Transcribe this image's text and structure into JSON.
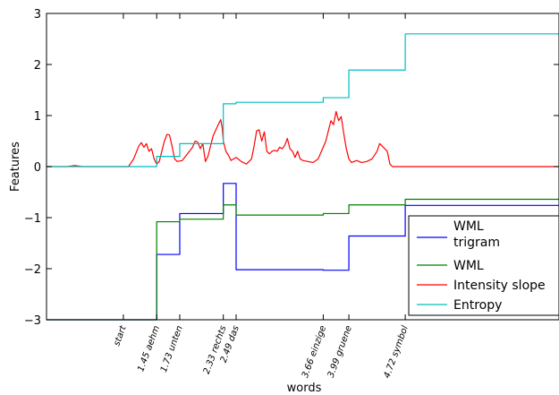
{
  "chart_data": {
    "type": "line",
    "xlabel": "words",
    "ylabel": "Features",
    "ylim": [
      -3,
      3
    ],
    "yticks": [
      "3",
      "2",
      "1",
      "0",
      "−1",
      "−2",
      "−3"
    ],
    "xlim": [
      0,
      10
    ],
    "word_ticks": [
      {
        "x": 1.5,
        "label": "start"
      },
      {
        "x": 2.15,
        "label": "1.45 aehm"
      },
      {
        "x": 2.6,
        "label": "1.73 unten"
      },
      {
        "x": 3.45,
        "label": "2.33 rechts"
      },
      {
        "x": 3.7,
        "label": "2.49 das"
      },
      {
        "x": 5.4,
        "label": "3.66 einzige"
      },
      {
        "x": 5.9,
        "label": "3.99 gruene"
      },
      {
        "x": 7.0,
        "label": "4.72 symbol"
      }
    ],
    "legend_position": "lower-right",
    "series": [
      {
        "name": "WML trigram",
        "color": "#0000ff",
        "step": true,
        "points": [
          [
            0,
            -3.0
          ],
          [
            2.15,
            -3.0
          ],
          [
            2.15,
            -1.72
          ],
          [
            2.6,
            -1.72
          ],
          [
            2.6,
            -0.92
          ],
          [
            3.45,
            -0.92
          ],
          [
            3.45,
            -0.33
          ],
          [
            3.7,
            -0.33
          ],
          [
            3.7,
            -2.02
          ],
          [
            5.4,
            -2.02
          ],
          [
            5.4,
            -2.03
          ],
          [
            5.9,
            -2.03
          ],
          [
            5.9,
            -1.36
          ],
          [
            7.0,
            -1.36
          ],
          [
            7.0,
            -0.76
          ],
          [
            10,
            -0.76
          ]
        ]
      },
      {
        "name": "WML",
        "color": "#008000",
        "step": true,
        "points": [
          [
            0,
            -3.0
          ],
          [
            2.15,
            -3.0
          ],
          [
            2.15,
            -1.08
          ],
          [
            2.6,
            -1.08
          ],
          [
            2.6,
            -1.03
          ],
          [
            3.45,
            -1.03
          ],
          [
            3.45,
            -0.75
          ],
          [
            3.7,
            -0.75
          ],
          [
            3.7,
            -0.95
          ],
          [
            5.4,
            -0.95
          ],
          [
            5.4,
            -0.92
          ],
          [
            5.9,
            -0.92
          ],
          [
            5.9,
            -0.75
          ],
          [
            7.0,
            -0.75
          ],
          [
            7.0,
            -0.64
          ],
          [
            10,
            -0.64
          ]
        ]
      },
      {
        "name": "Intensity slope",
        "color": "#ff0000",
        "step": false,
        "points": [
          [
            0,
            0.0
          ],
          [
            0.4,
            0.0
          ],
          [
            0.55,
            0.02
          ],
          [
            0.7,
            0.0
          ],
          [
            1.6,
            0.0
          ],
          [
            1.7,
            0.15
          ],
          [
            1.8,
            0.4
          ],
          [
            1.85,
            0.47
          ],
          [
            1.9,
            0.38
          ],
          [
            1.95,
            0.45
          ],
          [
            2.0,
            0.3
          ],
          [
            2.05,
            0.35
          ],
          [
            2.1,
            0.15
          ],
          [
            2.15,
            0.05
          ],
          [
            2.2,
            0.1
          ],
          [
            2.3,
            0.5
          ],
          [
            2.35,
            0.63
          ],
          [
            2.4,
            0.62
          ],
          [
            2.45,
            0.4
          ],
          [
            2.5,
            0.15
          ],
          [
            2.55,
            0.1
          ],
          [
            2.65,
            0.12
          ],
          [
            2.75,
            0.25
          ],
          [
            2.85,
            0.38
          ],
          [
            2.9,
            0.5
          ],
          [
            2.95,
            0.48
          ],
          [
            3.0,
            0.35
          ],
          [
            3.05,
            0.45
          ],
          [
            3.1,
            0.1
          ],
          [
            3.15,
            0.2
          ],
          [
            3.25,
            0.6
          ],
          [
            3.35,
            0.82
          ],
          [
            3.4,
            0.92
          ],
          [
            3.43,
            0.75
          ],
          [
            3.45,
            0.5
          ],
          [
            3.5,
            0.3
          ],
          [
            3.55,
            0.22
          ],
          [
            3.6,
            0.12
          ],
          [
            3.7,
            0.18
          ],
          [
            3.8,
            0.1
          ],
          [
            3.9,
            0.05
          ],
          [
            4.0,
            0.15
          ],
          [
            4.05,
            0.4
          ],
          [
            4.1,
            0.7
          ],
          [
            4.15,
            0.72
          ],
          [
            4.2,
            0.5
          ],
          [
            4.25,
            0.68
          ],
          [
            4.3,
            0.3
          ],
          [
            4.35,
            0.25
          ],
          [
            4.4,
            0.3
          ],
          [
            4.45,
            0.32
          ],
          [
            4.5,
            0.3
          ],
          [
            4.55,
            0.38
          ],
          [
            4.6,
            0.35
          ],
          [
            4.65,
            0.42
          ],
          [
            4.7,
            0.55
          ],
          [
            4.75,
            0.35
          ],
          [
            4.8,
            0.3
          ],
          [
            4.85,
            0.18
          ],
          [
            4.9,
            0.3
          ],
          [
            4.95,
            0.15
          ],
          [
            5.0,
            0.12
          ],
          [
            5.1,
            0.1
          ],
          [
            5.2,
            0.08
          ],
          [
            5.3,
            0.15
          ],
          [
            5.45,
            0.5
          ],
          [
            5.55,
            0.9
          ],
          [
            5.6,
            0.82
          ],
          [
            5.65,
            1.08
          ],
          [
            5.7,
            0.9
          ],
          [
            5.75,
            0.98
          ],
          [
            5.8,
            0.65
          ],
          [
            5.85,
            0.35
          ],
          [
            5.9,
            0.15
          ],
          [
            5.95,
            0.08
          ],
          [
            6.05,
            0.12
          ],
          [
            6.15,
            0.08
          ],
          [
            6.25,
            0.1
          ],
          [
            6.35,
            0.15
          ],
          [
            6.45,
            0.3
          ],
          [
            6.5,
            0.45
          ],
          [
            6.55,
            0.4
          ],
          [
            6.6,
            0.35
          ],
          [
            6.65,
            0.3
          ],
          [
            6.7,
            0.05
          ],
          [
            6.75,
            0.0
          ],
          [
            10,
            0.0
          ]
        ]
      },
      {
        "name": "Entropy",
        "color": "#00bfbf",
        "step": true,
        "points": [
          [
            0,
            0.0
          ],
          [
            2.15,
            0.0
          ],
          [
            2.15,
            0.2
          ],
          [
            2.6,
            0.2
          ],
          [
            2.6,
            0.45
          ],
          [
            3.45,
            0.45
          ],
          [
            3.45,
            1.23
          ],
          [
            3.7,
            1.23
          ],
          [
            3.7,
            1.26
          ],
          [
            5.4,
            1.26
          ],
          [
            5.4,
            1.35
          ],
          [
            5.9,
            1.35
          ],
          [
            5.9,
            1.89
          ],
          [
            7.0,
            1.89
          ],
          [
            7.0,
            2.6
          ],
          [
            10,
            2.6
          ]
        ]
      }
    ],
    "legend": [
      {
        "label": "WML",
        "label2": "trigram",
        "color": "#0000ff"
      },
      {
        "label": "WML",
        "color": "#008000"
      },
      {
        "label": "Intensity slope",
        "color": "#ff0000"
      },
      {
        "label": "Entropy",
        "color": "#00bfbf"
      }
    ]
  }
}
